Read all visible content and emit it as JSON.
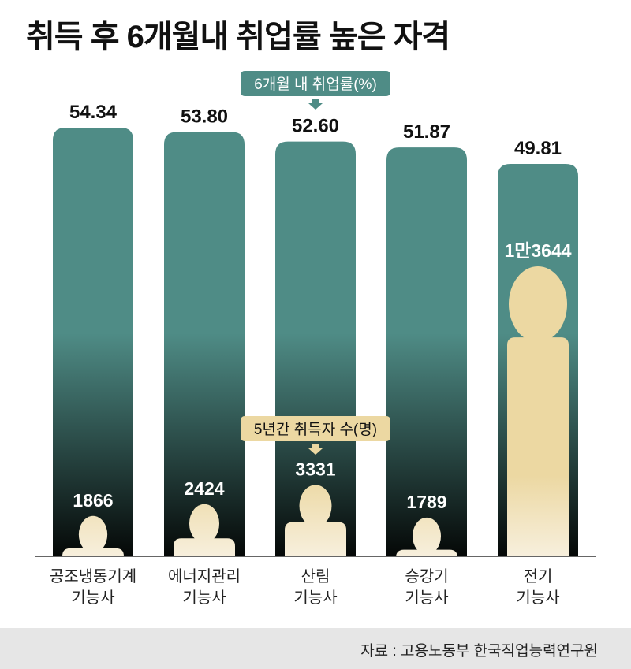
{
  "title": "취득 후 6개월내 취업률 높은 자격",
  "source": "자료 : 고용노동부 한국직업능력연구원",
  "colors": {
    "bar": "#4f8c86",
    "bar_bottom": "#050807",
    "person": "#ecd8a2",
    "person_light": "#f7efdc",
    "legend_rate_bg": "#4f8c86",
    "legend_count_bg": "#ecd8a2"
  },
  "chart_data": {
    "type": "bar",
    "title": "취득 후 6개월내 취업률 높은 자격",
    "categories": [
      [
        "공조냉동기계",
        "기능사"
      ],
      [
        "에너지관리",
        "기능사"
      ],
      [
        "산림",
        "기능사"
      ],
      [
        "승강기",
        "기능사"
      ],
      [
        "전기",
        "기능사"
      ]
    ],
    "series": [
      {
        "name": "6개월 내 취업률(%)",
        "values": [
          54.34,
          53.8,
          52.6,
          51.87,
          49.81
        ],
        "labels": [
          "54.34",
          "53.80",
          "52.60",
          "51.87",
          "49.81"
        ]
      },
      {
        "name": "5년간 취득자 수(명)",
        "values": [
          1866,
          2424,
          3331,
          1789,
          13644
        ],
        "labels": [
          "1866",
          "2424",
          "3331",
          "1789",
          "1만3644"
        ],
        "marker": "person-icon"
      }
    ],
    "grid": false,
    "legend": [
      "6개월 내 취업률(%)",
      "5년간 취득자 수(명)"
    ]
  }
}
